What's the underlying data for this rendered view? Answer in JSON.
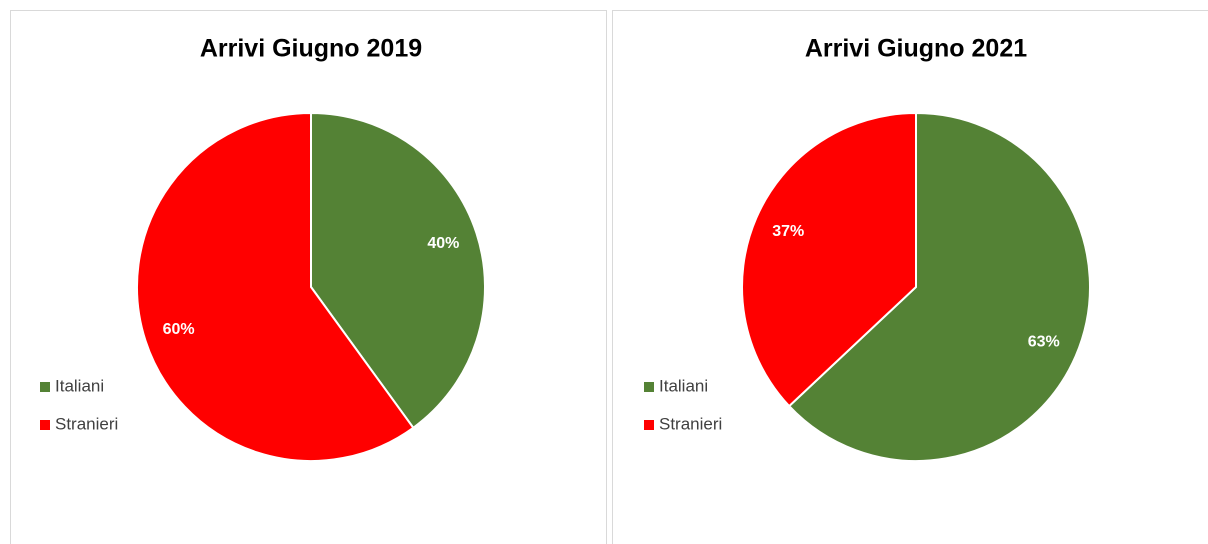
{
  "chart_data": [
    {
      "type": "pie",
      "title": "Arrivi Giugno 2019",
      "categories": [
        "Italiani",
        "Stranieri"
      ],
      "values": [
        40,
        60
      ],
      "value_labels": [
        "40%",
        "60%"
      ],
      "colors": [
        "#548235",
        "#ff0000"
      ],
      "legend": "left"
    },
    {
      "type": "pie",
      "title": "Arrivi Giugno 2021",
      "categories": [
        "Italiani",
        "Stranieri"
      ],
      "values": [
        63,
        37
      ],
      "value_labels": [
        "63%",
        "37%"
      ],
      "colors": [
        "#548235",
        "#ff0000"
      ],
      "legend": "left"
    }
  ]
}
